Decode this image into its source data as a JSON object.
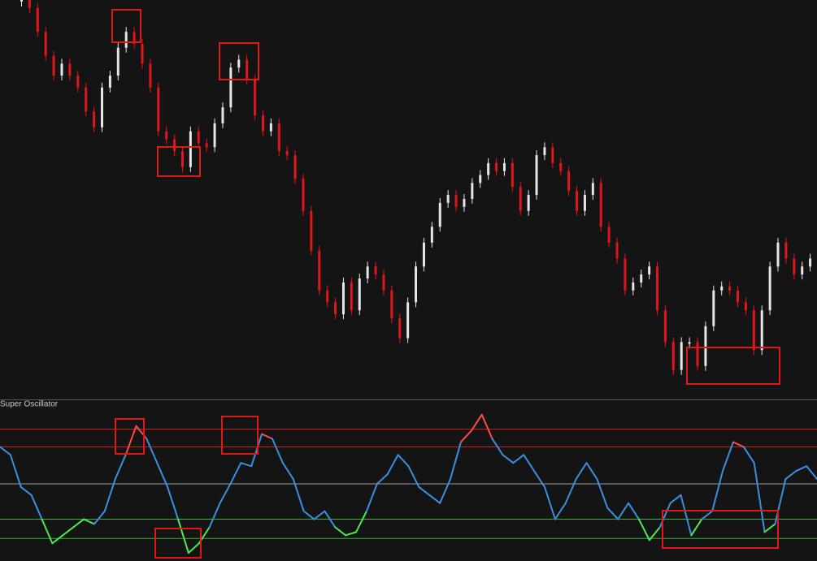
{
  "chart_data": [
    {
      "type": "candlestick",
      "up_color": "#e6e6e6",
      "down_color": "#e0161b",
      "ylim": [
        0,
        100
      ],
      "values": [
        100,
        98,
        92,
        86,
        81,
        84,
        81,
        78,
        72,
        68,
        78,
        81,
        88,
        92,
        89,
        84,
        78,
        67,
        65,
        62,
        58,
        67,
        64,
        63,
        69,
        73,
        83,
        85,
        80,
        71,
        67,
        69,
        62,
        61,
        55,
        47,
        37,
        27,
        24,
        21,
        29,
        22,
        30,
        33,
        31,
        27,
        20,
        15,
        24,
        33,
        39,
        43,
        49,
        51,
        48,
        50,
        54,
        56,
        59,
        57,
        59,
        53,
        47,
        51,
        61,
        63,
        59,
        57,
        52,
        47,
        51,
        54,
        43,
        39,
        35,
        27,
        29,
        31,
        33,
        22,
        14,
        7,
        14,
        14,
        8,
        18,
        27,
        28,
        27,
        24,
        22,
        12,
        22,
        33,
        39,
        35,
        31,
        33,
        35
      ]
    },
    {
      "type": "line",
      "title": "Super Oscillator",
      "ylim": [
        0,
        100
      ],
      "levels": [
        {
          "value": 82,
          "color": "#d02020"
        },
        {
          "value": 71,
          "color": "#d02020"
        },
        {
          "value": 48,
          "color": "#9a9a9a"
        },
        {
          "value": 26,
          "color": "#2fb52f"
        },
        {
          "value": 14,
          "color": "#2fb52f"
        }
      ],
      "high_color": "#ff4a4a",
      "mid_color": "#3a8fe0",
      "low_color": "#4ee84e",
      "values": [
        71,
        66,
        46,
        41,
        26,
        11,
        16,
        21,
        26,
        23,
        31,
        51,
        66,
        84,
        76,
        61,
        46,
        26,
        5,
        11,
        21,
        36,
        48,
        61,
        59,
        79,
        76,
        61,
        51,
        31,
        26,
        31,
        21,
        16,
        18,
        31,
        48,
        54,
        66,
        59,
        46,
        41,
        36,
        51,
        74,
        81,
        91,
        76,
        66,
        61,
        66,
        56,
        46,
        26,
        36,
        51,
        61,
        51,
        33,
        26,
        36,
        26,
        13,
        21,
        36,
        41,
        16,
        26,
        31,
        56,
        74,
        71,
        61,
        18,
        23,
        51,
        56,
        59,
        51
      ]
    }
  ]
}
